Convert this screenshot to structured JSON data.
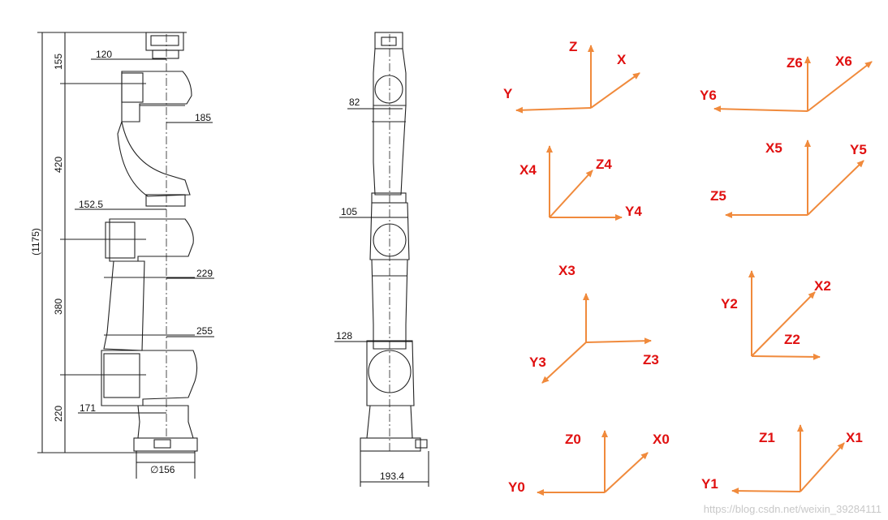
{
  "side_view": {
    "height_labels": [
      "155",
      "420",
      "380",
      "220"
    ],
    "total_label": "(1175)",
    "offset_labels": [
      "120",
      "185",
      "152.5",
      "229",
      "255",
      "171"
    ],
    "base_label": "∅156"
  },
  "front_view": {
    "width_labels": [
      "82",
      "105",
      "128"
    ],
    "base_label": "193.4"
  },
  "frames": [
    {
      "labels": [
        "Z",
        "X",
        "Y"
      ]
    },
    {
      "labels": [
        "Z6",
        "X6",
        "Y6"
      ]
    },
    {
      "labels": [
        "X4",
        "Z4",
        "Y4"
      ]
    },
    {
      "labels": [
        "X5",
        "Y5",
        "Z5"
      ]
    },
    {
      "labels": [
        "X3",
        "Z3",
        "Y3"
      ]
    },
    {
      "labels": [
        "Y2",
        "X2",
        "Z2"
      ]
    },
    {
      "labels": [
        "Z0",
        "X0",
        "Y0"
      ]
    },
    {
      "labels": [
        "Z1",
        "X1",
        "Y1"
      ]
    }
  ],
  "watermark": "https://blog.csdn.net/weixin_39284111",
  "colors": {
    "axis": "#f08a3c",
    "axis_label": "#e01010",
    "drawing": "#222222"
  }
}
